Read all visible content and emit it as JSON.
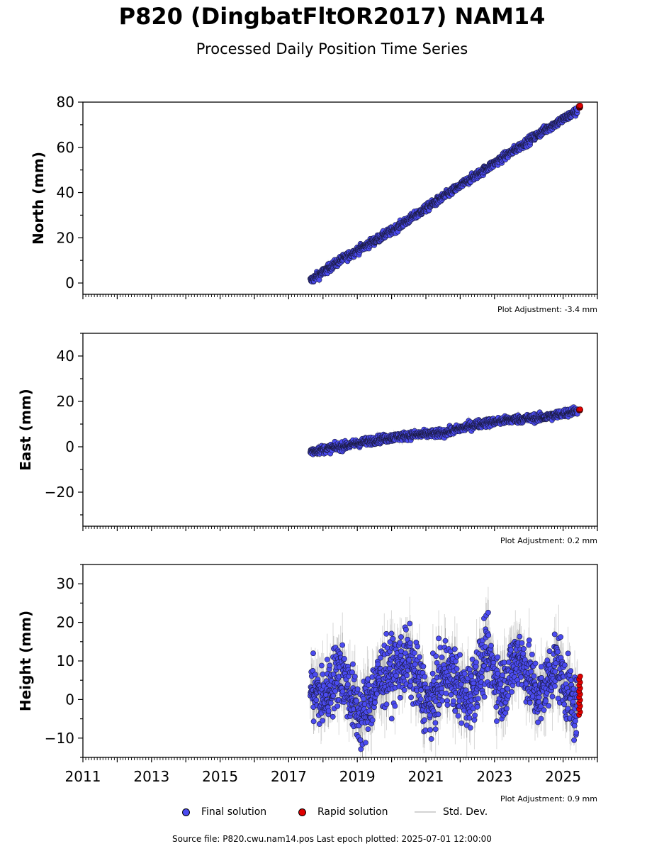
{
  "title": "P820 (DingbatFltOR2017) NAM14",
  "subtitle": "Processed Daily Position Time Series",
  "colors": {
    "final": "#4b4bf0",
    "rapid": "#e00000",
    "stddev": "#d3d3d3",
    "axis": "#000000"
  },
  "legend": {
    "final": "Final solution",
    "rapid": "Rapid solution",
    "stddev": "Std. Dev."
  },
  "footer": "Source file: P820.cwu.nam14.pos  Last epoch plotted: 2025-07-01 12:00:00",
  "chart_data": [
    {
      "type": "scatter",
      "ylabel": "North (mm)",
      "ylim": [
        -5,
        80
      ],
      "xlim": [
        2011,
        2026
      ],
      "yticks": [
        0,
        20,
        40,
        60,
        80
      ],
      "ytick_labels": [
        "0",
        "20",
        "40",
        "60",
        "80"
      ],
      "adjustment": "Plot Adjustment: -3.4 mm",
      "final_trend": {
        "x": [
          2017.63,
          2018.5,
          2020.0,
          2021.5,
          2023.0,
          2024.5,
          2025.4
        ],
        "y": [
          1,
          10,
          23,
          38,
          53,
          68,
          76
        ]
      },
      "rapid": {
        "x": [
          2025.45,
          2025.5
        ],
        "y": [
          77.5,
          78.5
        ]
      }
    },
    {
      "type": "scatter",
      "ylabel": "East (mm)",
      "ylim": [
        -35,
        50
      ],
      "xlim": [
        2011,
        2026
      ],
      "yticks": [
        -20,
        0,
        20,
        40
      ],
      "ytick_labels": [
        "−20",
        "0",
        "20",
        "40"
      ],
      "adjustment": "Plot Adjustment: 0.2 mm",
      "final_trend": {
        "x": [
          2017.63,
          2018.5,
          2019.5,
          2020.5,
          2021.5,
          2022.5,
          2023.5,
          2024.5,
          2025.4
        ],
        "y": [
          -2,
          0,
          3,
          5,
          6,
          10,
          12,
          13,
          16
        ]
      },
      "rapid": {
        "x": [
          2025.45,
          2025.5
        ],
        "y": [
          16,
          16.5
        ]
      }
    },
    {
      "type": "scatter",
      "ylabel": "Height (mm)",
      "ylim": [
        -15,
        35
      ],
      "xlim": [
        2011,
        2026
      ],
      "yticks": [
        -10,
        0,
        10,
        20,
        30
      ],
      "ytick_labels": [
        "−10",
        "0",
        "10",
        "20",
        "30"
      ],
      "adjustment": "Plot Adjustment: 0.9 mm",
      "xticks": [
        2011,
        2013,
        2015,
        2017,
        2019,
        2021,
        2023,
        2025
      ],
      "xtick_labels": [
        "2011",
        "2013",
        "2015",
        "2017",
        "2019",
        "2021",
        "2023",
        "2025"
      ],
      "final_trend": {
        "x": [
          2017.63,
          2018.0,
          2018.5,
          2019.1,
          2019.7,
          2020.5,
          2021.1,
          2021.6,
          2022.2,
          2022.8,
          2023.2,
          2023.7,
          2024.3,
          2024.8,
          2025.3
        ],
        "y": [
          3,
          0,
          8,
          -5,
          6,
          10,
          -2,
          8,
          0,
          12,
          2,
          12,
          0,
          10,
          -2
        ]
      },
      "rapid": {
        "x": [
          2025.45,
          2025.5
        ],
        "y": [
          -4,
          6
        ]
      }
    }
  ]
}
